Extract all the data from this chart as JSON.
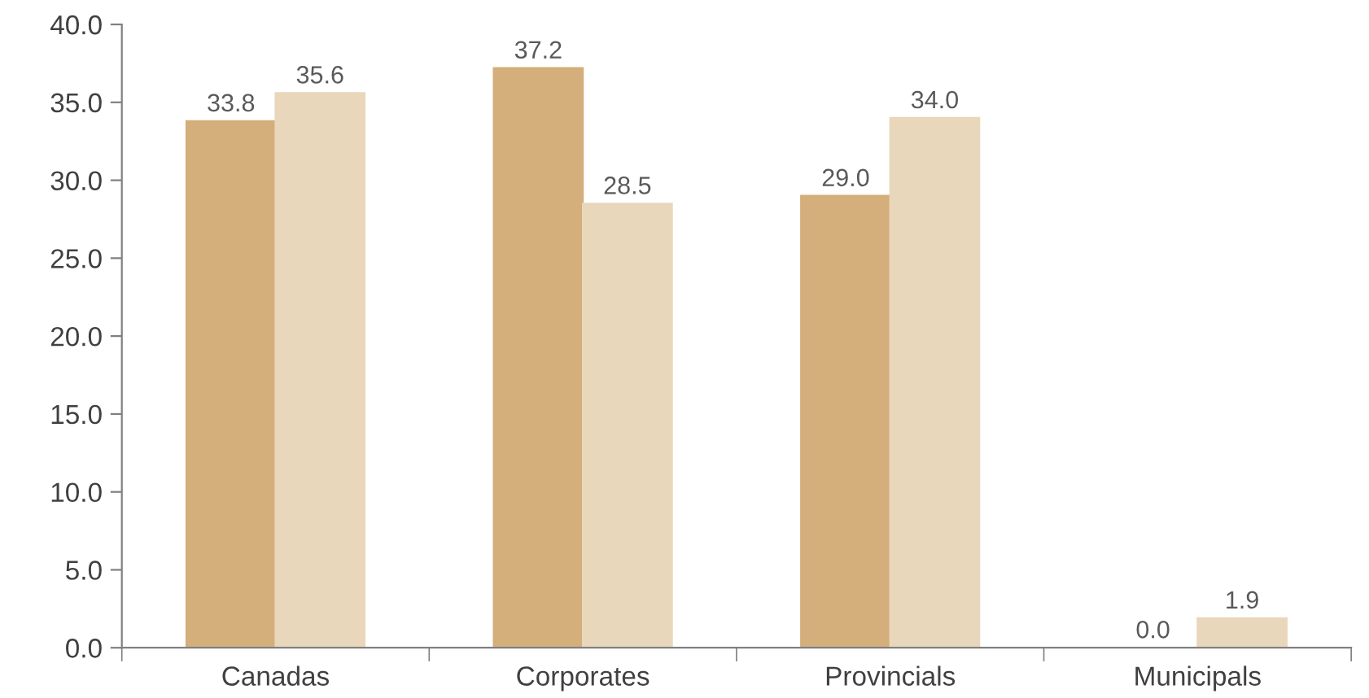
{
  "chart_data": {
    "type": "bar",
    "categories": [
      "Canadas",
      "Corporates",
      "Provincials",
      "Municipals"
    ],
    "series": [
      {
        "color": "#d4ae7b",
        "values": [
          33.8,
          37.2,
          29.0,
          0.0
        ],
        "value_labels": [
          "33.8",
          "37.2",
          "29.0",
          "0.0"
        ]
      },
      {
        "color": "#e9d7bb",
        "values": [
          35.6,
          28.5,
          34.0,
          1.9
        ],
        "value_labels": [
          "35.6",
          "28.5",
          "34.0",
          "1.9"
        ]
      }
    ],
    "ylim": [
      0,
      40
    ],
    "yticks": [
      {
        "value": 0,
        "label": "0.0"
      },
      {
        "value": 5,
        "label": "5.0"
      },
      {
        "value": 10,
        "label": "10.0"
      },
      {
        "value": 15,
        "label": "15.0"
      },
      {
        "value": 20,
        "label": "20.0"
      },
      {
        "value": 25,
        "label": "25.0"
      },
      {
        "value": 30,
        "label": "30.0"
      },
      {
        "value": 35,
        "label": "35.0"
      },
      {
        "value": 40,
        "label": "40.0"
      }
    ],
    "grid": false,
    "legend": false
  }
}
